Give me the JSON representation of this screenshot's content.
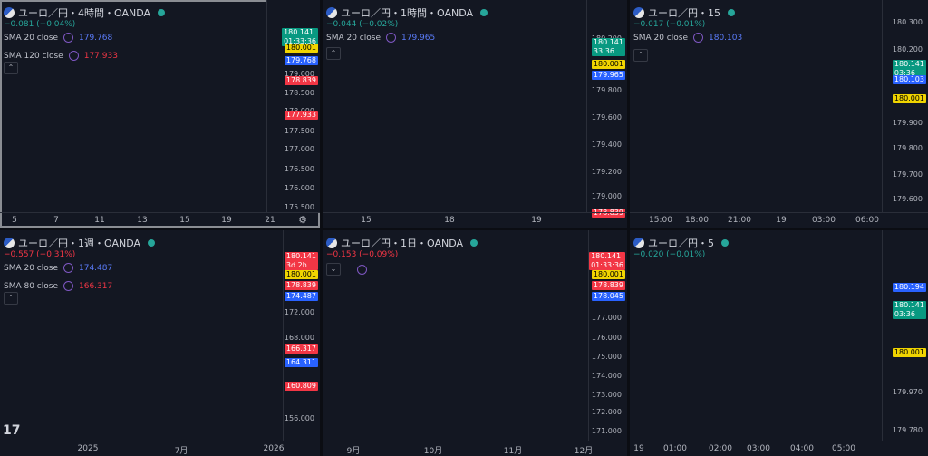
{
  "colors": {
    "bg": "#131722",
    "up": "#f23645",
    "down": "#26a69a",
    "sma20": "#2962ff",
    "sma_long": "#b22833",
    "yellow_line": "#f0d400",
    "red_line": "#e54048",
    "grid": "#1e222d"
  },
  "panes": [
    {
      "title": "ユーロ／円・4時間・OANDA",
      "change": "−0.081 (−0.04%)",
      "change_color": "#26a69a",
      "sma": [
        {
          "label": "SMA 20 close",
          "value": "179.768",
          "color": "#5b7cfa"
        },
        {
          "label": "SMA 120 close",
          "value": "177.933",
          "color": "#f23645"
        }
      ],
      "currency": "JPY",
      "axis_ticks": [
        "179.000",
        "178.500",
        "178.000",
        "177.500",
        "177.000",
        "176.500",
        "176.000",
        "175.500"
      ],
      "price_tags": [
        {
          "text": "180.141",
          "text2": "01:33:36",
          "bg": "#089981",
          "color": "#fff"
        },
        {
          "text": "180.001",
          "bg": "#f0d400",
          "color": "#000"
        },
        {
          "text": "179.768",
          "bg": "#2962ff",
          "color": "#fff"
        },
        {
          "text": "178.839",
          "bg": "#f23645",
          "color": "#fff"
        },
        {
          "text": "177.933",
          "bg": "#f23645",
          "color": "#fff"
        }
      ],
      "x_labels": [
        "5",
        "7",
        "11",
        "13",
        "15",
        "19",
        "21"
      ]
    },
    {
      "title": "ユーロ／円・1時間・OANDA",
      "change": "−0.044 (−0.02%)",
      "change_color": "#26a69a",
      "sma": [
        {
          "label": "SMA 20 close",
          "value": "179.965",
          "color": "#5b7cfa"
        }
      ],
      "currency": "JPY",
      "axis_ticks": [
        "180.200",
        "179.800",
        "179.600",
        "179.400",
        "179.200",
        "179.000"
      ],
      "price_tags": [
        {
          "text": "180.141",
          "text2": "33:36",
          "bg": "#089981",
          "color": "#fff"
        },
        {
          "text": "180.001",
          "bg": "#f0d400",
          "color": "#000"
        },
        {
          "text": "179.965",
          "bg": "#2962ff",
          "color": "#fff"
        },
        {
          "text": "178.839",
          "bg": "#f23645",
          "color": "#fff"
        }
      ],
      "x_labels": [
        "15",
        "18",
        "19"
      ]
    },
    {
      "title": "ユーロ／円・15",
      "change": "−0.017 (−0.01%)",
      "change_color": "#26a69a",
      "sma": [
        {
          "label": "SMA 20 close",
          "value": "180.103",
          "color": "#5b7cfa"
        }
      ],
      "currency": "JPY",
      "axis_ticks": [
        "180.300",
        "180.200",
        "179.900",
        "179.800",
        "179.700",
        "179.600"
      ],
      "price_tags": [
        {
          "text": "180.141",
          "text2": "03:36",
          "bg": "#089981",
          "color": "#fff"
        },
        {
          "text": "180.103",
          "bg": "#2962ff",
          "color": "#fff"
        },
        {
          "text": "180.001",
          "bg": "#f0d400",
          "color": "#000"
        }
      ],
      "x_labels": [
        "15:00",
        "18:00",
        "21:00",
        "19",
        "03:00",
        "06:00"
      ]
    },
    {
      "title": "ユーロ／円・1週・OANDA",
      "change": "−0.557 (−0.31%)",
      "change_color": "#f23645",
      "sma": [
        {
          "label": "SMA 20 close",
          "value": "174.487",
          "color": "#5b7cfa"
        },
        {
          "label": "SMA 80 close",
          "value": "166.317",
          "color": "#f23645"
        }
      ],
      "currency": "JPY",
      "axis_ticks": [
        "172.000",
        "168.000",
        "156.000"
      ],
      "price_tags": [
        {
          "text": "180.141",
          "text2": "3d 2h",
          "bg": "#f23645",
          "color": "#fff"
        },
        {
          "text": "180.001",
          "bg": "#f0d400",
          "color": "#000"
        },
        {
          "text": "178.839",
          "bg": "#f23645",
          "color": "#fff"
        },
        {
          "text": "174.487",
          "bg": "#2962ff",
          "color": "#fff"
        },
        {
          "text": "166.317",
          "bg": "#f23645",
          "color": "#fff"
        },
        {
          "text": "164.311",
          "bg": "#2962ff",
          "color": "#fff"
        },
        {
          "text": "160.809",
          "bg": "#f23645",
          "color": "#fff"
        }
      ],
      "x_labels": [
        "2025",
        "7月",
        "2026"
      ]
    },
    {
      "title": "ユーロ／円・1日・OANDA",
      "change": "−0.153 (−0.09%)",
      "change_color": "#f23645",
      "sma": [],
      "currency": "JPY",
      "axis_ticks": [
        "177.000",
        "176.000",
        "175.000",
        "174.000",
        "173.000",
        "172.000",
        "171.000"
      ],
      "price_tags": [
        {
          "text": "180.141",
          "text2": "01:33:36",
          "bg": "#f23645",
          "color": "#fff"
        },
        {
          "text": "180.001",
          "bg": "#f0d400",
          "color": "#000"
        },
        {
          "text": "178.839",
          "bg": "#f23645",
          "color": "#fff"
        },
        {
          "text": "178.045",
          "bg": "#2962ff",
          "color": "#fff"
        }
      ],
      "x_labels": [
        "9月",
        "10月",
        "11月",
        "12月"
      ]
    },
    {
      "title": "ユーロ／円・5",
      "change": "−0.020 (−0.01%)",
      "change_color": "#26a69a",
      "sma": [],
      "currency": "JPY",
      "axis_ticks": [
        "179.970",
        "179.780"
      ],
      "price_tags": [
        {
          "text": "180.194",
          "bg": "#2962ff",
          "color": "#fff"
        },
        {
          "text": "180.141",
          "text2": "03:36",
          "bg": "#089981",
          "color": "#fff"
        },
        {
          "text": "180.001",
          "bg": "#f0d400",
          "color": "#000"
        }
      ],
      "x_labels": [
        "19",
        "01:00",
        "02:00",
        "03:00",
        "04:00",
        "05:00"
      ]
    }
  ]
}
